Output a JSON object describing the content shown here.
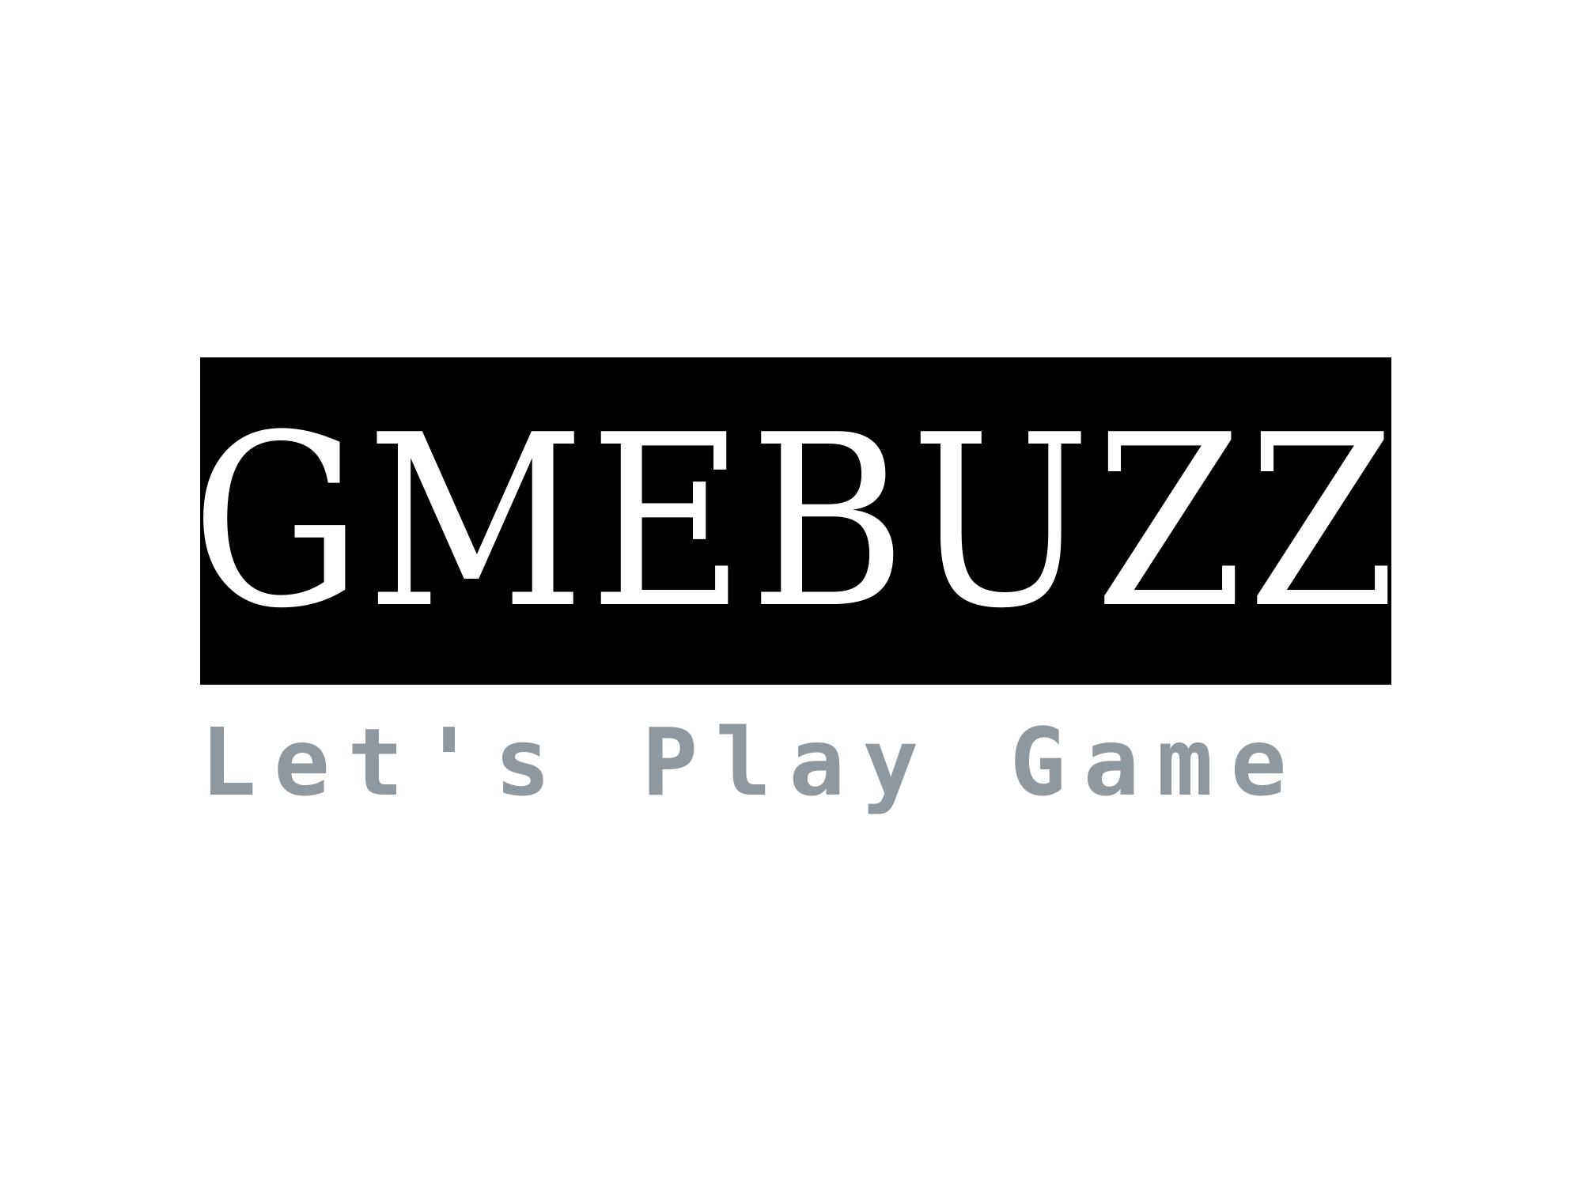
{
  "logo": {
    "name": "GMEBUZZ",
    "tagline": "Let's Play Game",
    "colors": {
      "block": "#000000",
      "wordmark": "#ffffff",
      "tagline": "#8f979f"
    }
  }
}
